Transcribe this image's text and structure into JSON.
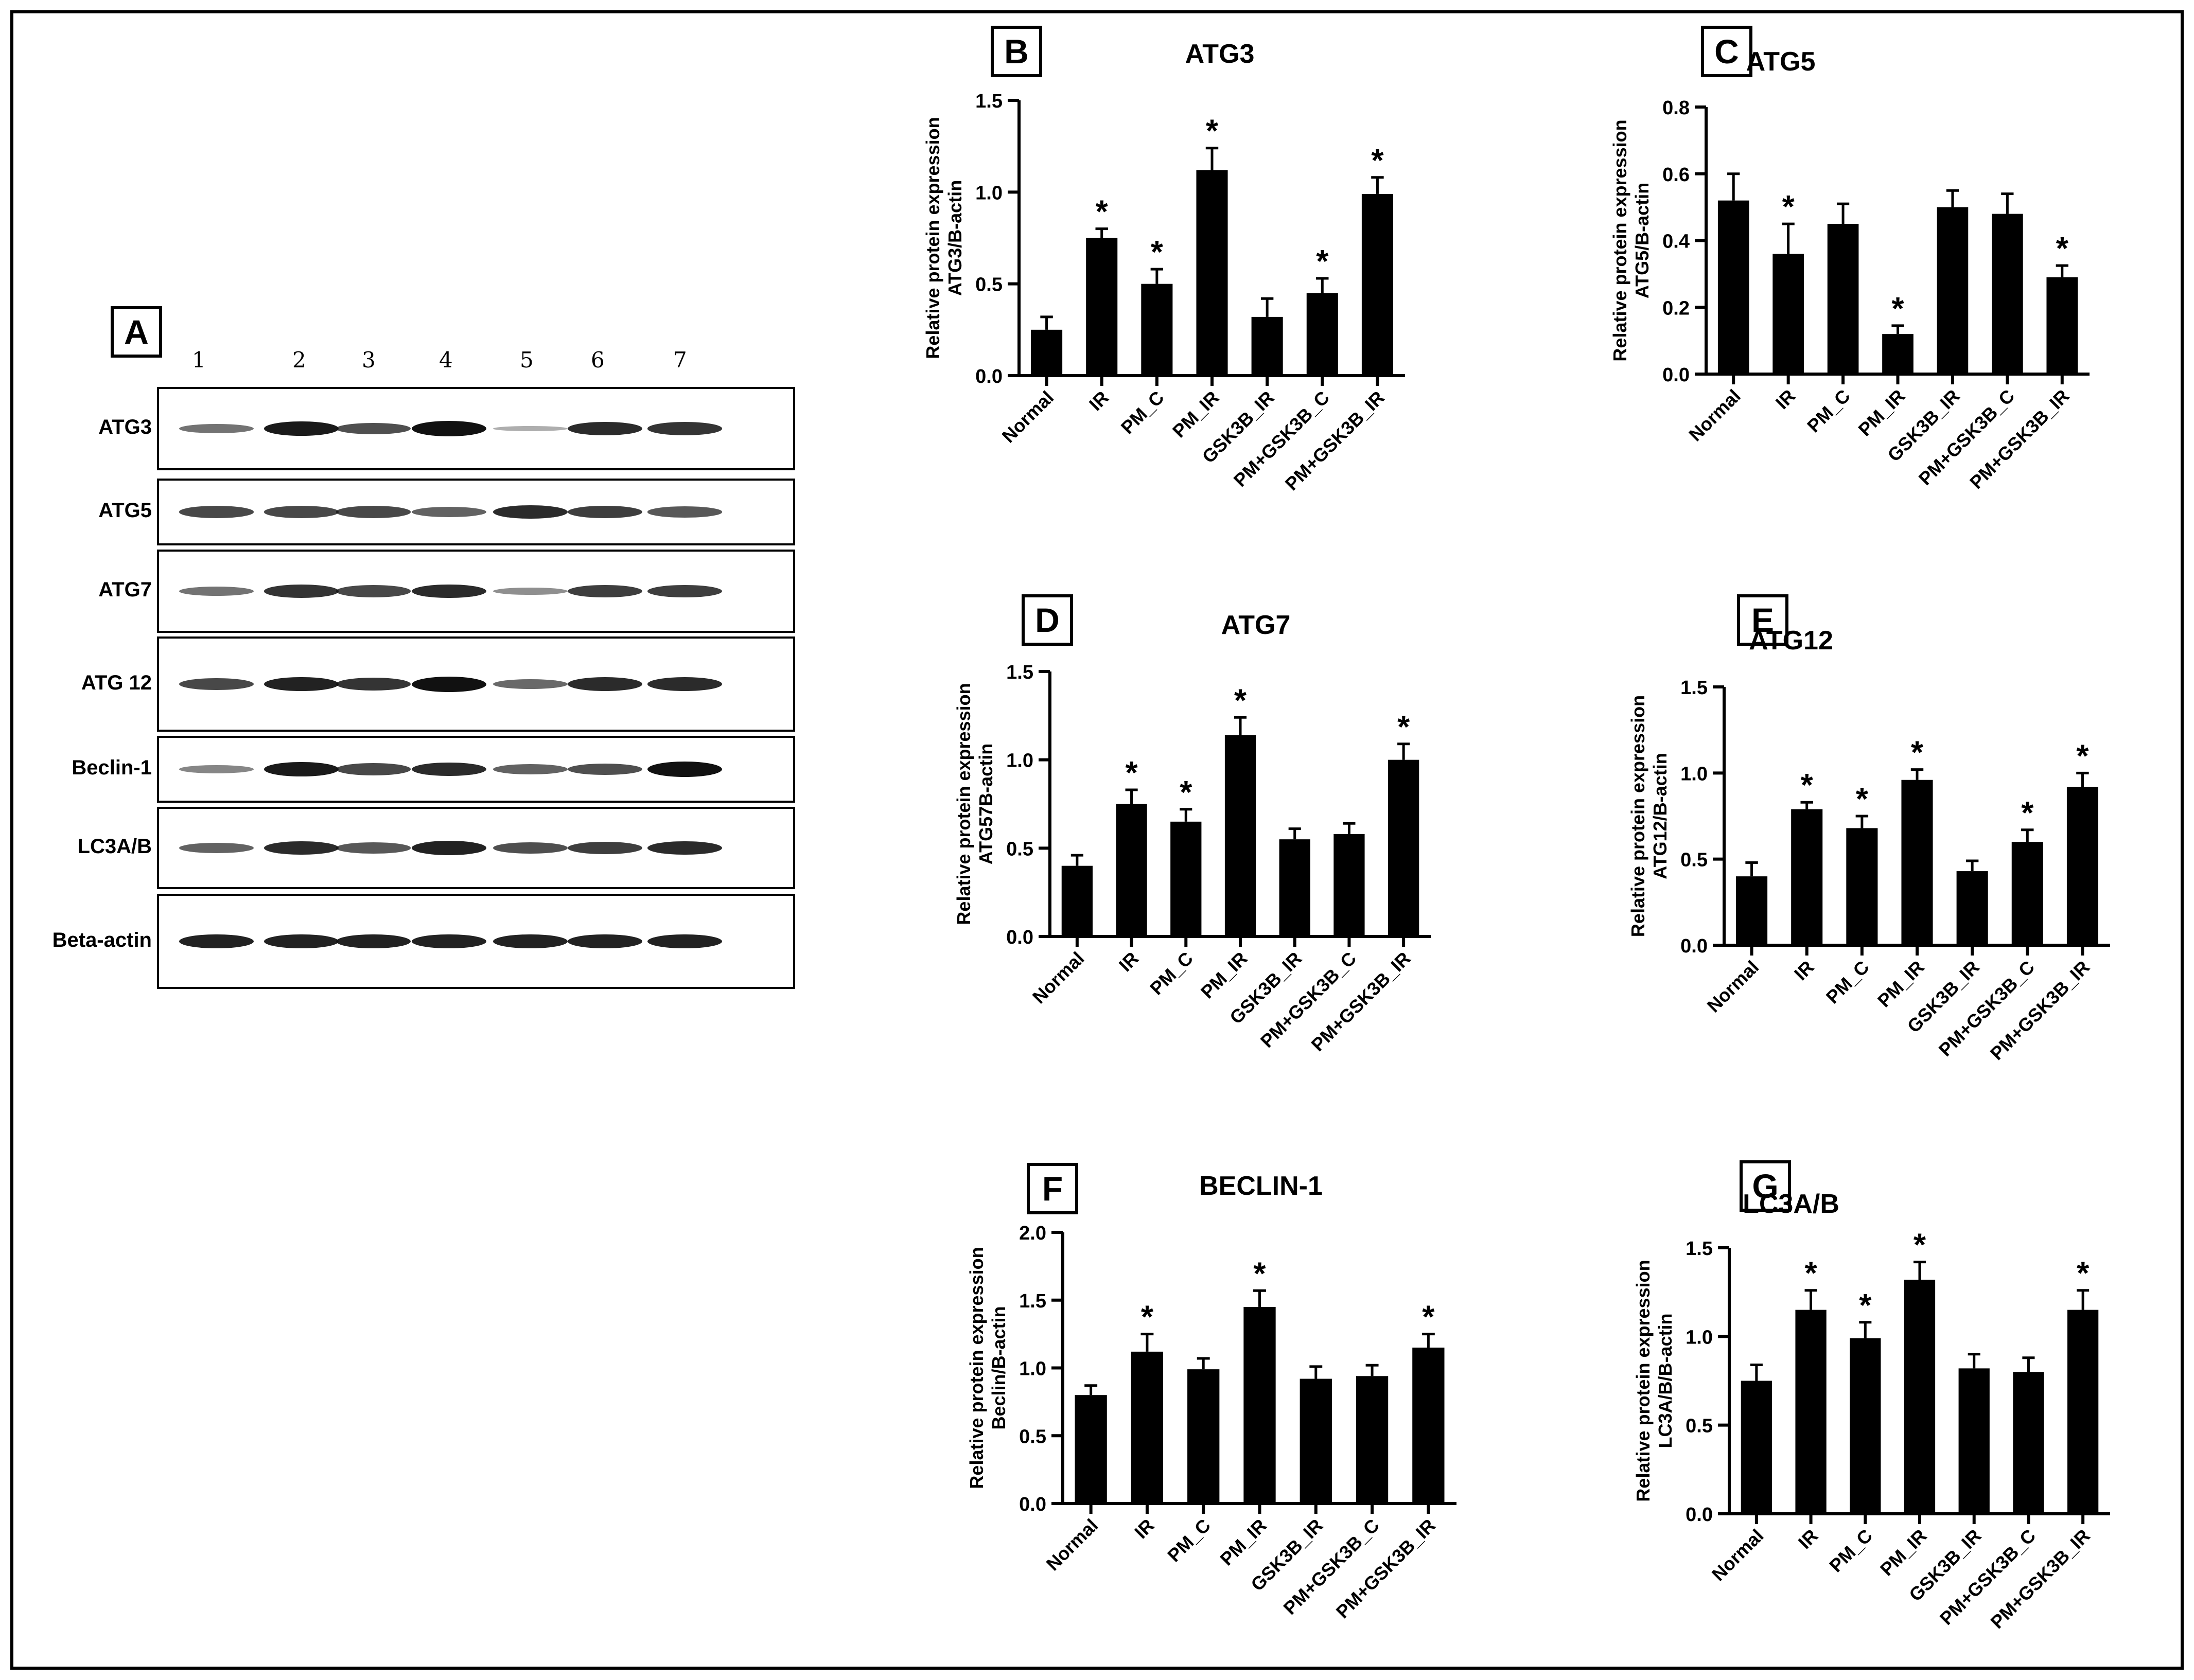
{
  "panel_a": {
    "letter": "A",
    "lanes": [
      "1",
      "2",
      "3",
      "4",
      "5",
      "6",
      "7"
    ],
    "blots": [
      {
        "label": "ATG3",
        "intensity": [
          0.45,
          0.95,
          0.65,
          1.0,
          0.12,
          0.85,
          0.8
        ]
      },
      {
        "label": "ATG5",
        "intensity": [
          0.7,
          0.7,
          0.7,
          0.55,
          0.85,
          0.75,
          0.6
        ]
      },
      {
        "label": "ATG7",
        "intensity": [
          0.45,
          0.8,
          0.7,
          0.85,
          0.3,
          0.75,
          0.75
        ]
      },
      {
        "label": "ATG 12",
        "intensity": [
          0.7,
          0.9,
          0.8,
          1.0,
          0.5,
          0.85,
          0.85
        ]
      },
      {
        "label": "Beclin-1",
        "intensity": [
          0.35,
          0.95,
          0.7,
          0.85,
          0.55,
          0.65,
          1.0
        ]
      },
      {
        "label": "LC3A/B",
        "intensity": [
          0.55,
          0.85,
          0.6,
          0.9,
          0.65,
          0.75,
          0.85
        ]
      },
      {
        "label": "Beta-actin",
        "intensity": [
          0.9,
          0.9,
          0.9,
          0.9,
          0.9,
          0.9,
          0.9
        ]
      }
    ]
  },
  "chart_data": [
    {
      "panel": "B",
      "type": "bar",
      "title": "ATG3",
      "ylabel_line1": "Relative protein expression",
      "ylabel_line2": "ATG3/B-actin",
      "categories": [
        "Normal",
        "IR",
        "PM_C",
        "PM_IR",
        "GSK3B_IR",
        "PM+GSK3B_C",
        "PM+GSK3B_IR"
      ],
      "values": [
        0.25,
        0.75,
        0.5,
        1.12,
        0.32,
        0.45,
        0.99
      ],
      "errors": [
        0.07,
        0.05,
        0.08,
        0.12,
        0.1,
        0.08,
        0.09
      ],
      "significant": [
        false,
        true,
        true,
        true,
        false,
        true,
        true
      ],
      "ylim": [
        0,
        1.5
      ],
      "ticks": [
        0,
        0.5,
        1,
        1.5
      ],
      "tick_labels": [
        "0.0",
        "0.5",
        "1.0",
        "1.5"
      ]
    },
    {
      "panel": "C",
      "type": "bar",
      "title": "ATG5",
      "ylabel_line1": "Relative protein expression",
      "ylabel_line2": "ATG5/B-actin",
      "categories": [
        "Normal",
        "IR",
        "PM_C",
        "PM_IR",
        "GSK3B_IR",
        "PM+GSK3B_C",
        "PM+GSK3B_IR"
      ],
      "values": [
        0.52,
        0.36,
        0.45,
        0.12,
        0.5,
        0.48,
        0.29
      ],
      "errors": [
        0.08,
        0.09,
        0.06,
        0.025,
        0.05,
        0.06,
        0.035
      ],
      "significant": [
        false,
        true,
        false,
        true,
        false,
        false,
        true
      ],
      "ylim": [
        0,
        0.8
      ],
      "ticks": [
        0,
        0.2,
        0.4,
        0.6,
        0.8
      ],
      "tick_labels": [
        "0.0",
        "0.2",
        "0.4",
        "0.6",
        "0.8"
      ]
    },
    {
      "panel": "D",
      "type": "bar",
      "title": "ATG7",
      "ylabel_line1": "Relative protein expression",
      "ylabel_line2": "ATG57B-actin",
      "categories": [
        "Normal",
        "IR",
        "PM_C",
        "PM_IR",
        "GSK3B_IR",
        "PM+GSK3B_C",
        "PM+GSK3B_IR"
      ],
      "values": [
        0.4,
        0.75,
        0.65,
        1.14,
        0.55,
        0.58,
        1.0
      ],
      "errors": [
        0.06,
        0.08,
        0.07,
        0.1,
        0.06,
        0.06,
        0.09
      ],
      "significant": [
        false,
        true,
        true,
        true,
        false,
        false,
        true
      ],
      "ylim": [
        0,
        1.5
      ],
      "ticks": [
        0,
        0.5,
        1,
        1.5
      ],
      "tick_labels": [
        "0.0",
        "0.5",
        "1.0",
        "1.5"
      ]
    },
    {
      "panel": "E",
      "type": "bar",
      "title": "ATG12",
      "ylabel_line1": "Relative protein expression",
      "ylabel_line2": "ATG12/B-actin",
      "categories": [
        "Normal",
        "IR",
        "PM_C",
        "PM_IR",
        "GSK3B_IR",
        "PM+GSK3B_C",
        "PM+GSK3B_IR"
      ],
      "values": [
        0.4,
        0.79,
        0.68,
        0.96,
        0.43,
        0.6,
        0.92
      ],
      "errors": [
        0.08,
        0.04,
        0.07,
        0.06,
        0.06,
        0.07,
        0.08
      ],
      "significant": [
        false,
        true,
        true,
        true,
        false,
        true,
        true
      ],
      "ylim": [
        0,
        1.5
      ],
      "ticks": [
        0,
        0.5,
        1,
        1.5
      ],
      "tick_labels": [
        "0.0",
        "0.5",
        "1.0",
        "1.5"
      ]
    },
    {
      "panel": "F",
      "type": "bar",
      "title": "BECLIN-1",
      "ylabel_line1": "Relative protein expression",
      "ylabel_line2": "Beclin/B-actin",
      "categories": [
        "Normal",
        "IR",
        "PM_C",
        "PM_IR",
        "GSK3B_IR",
        "PM+GSK3B_C",
        "PM+GSK3B_IR"
      ],
      "values": [
        0.8,
        1.12,
        0.99,
        1.45,
        0.92,
        0.94,
        1.15
      ],
      "errors": [
        0.07,
        0.13,
        0.08,
        0.12,
        0.09,
        0.08,
        0.1
      ],
      "significant": [
        false,
        true,
        false,
        true,
        false,
        false,
        true
      ],
      "ylim": [
        0,
        2.0
      ],
      "ticks": [
        0,
        0.5,
        1,
        1.5,
        2
      ],
      "tick_labels": [
        "0.0",
        "0.5",
        "1.0",
        "1.5",
        "2.0"
      ]
    },
    {
      "panel": "G",
      "type": "bar",
      "title": "LC3A/B",
      "ylabel_line1": "Relative protein expression",
      "ylabel_line2": "LC3A/B/B-actin",
      "categories": [
        "Normal",
        "IR",
        "PM_C",
        "PM_IR",
        "GSK3B_IR",
        "PM+GSK3B_C",
        "PM+GSK3B_IR"
      ],
      "values": [
        0.75,
        1.15,
        0.99,
        1.32,
        0.82,
        0.8,
        1.15
      ],
      "errors": [
        0.09,
        0.11,
        0.09,
        0.1,
        0.08,
        0.08,
        0.11
      ],
      "significant": [
        false,
        true,
        true,
        true,
        false,
        false,
        true
      ],
      "ylim": [
        0,
        1.5
      ],
      "ticks": [
        0,
        0.5,
        1,
        1.5
      ],
      "tick_labels": [
        "0.0",
        "0.5",
        "1.0",
        "1.5"
      ]
    }
  ],
  "significance_marker": "*"
}
